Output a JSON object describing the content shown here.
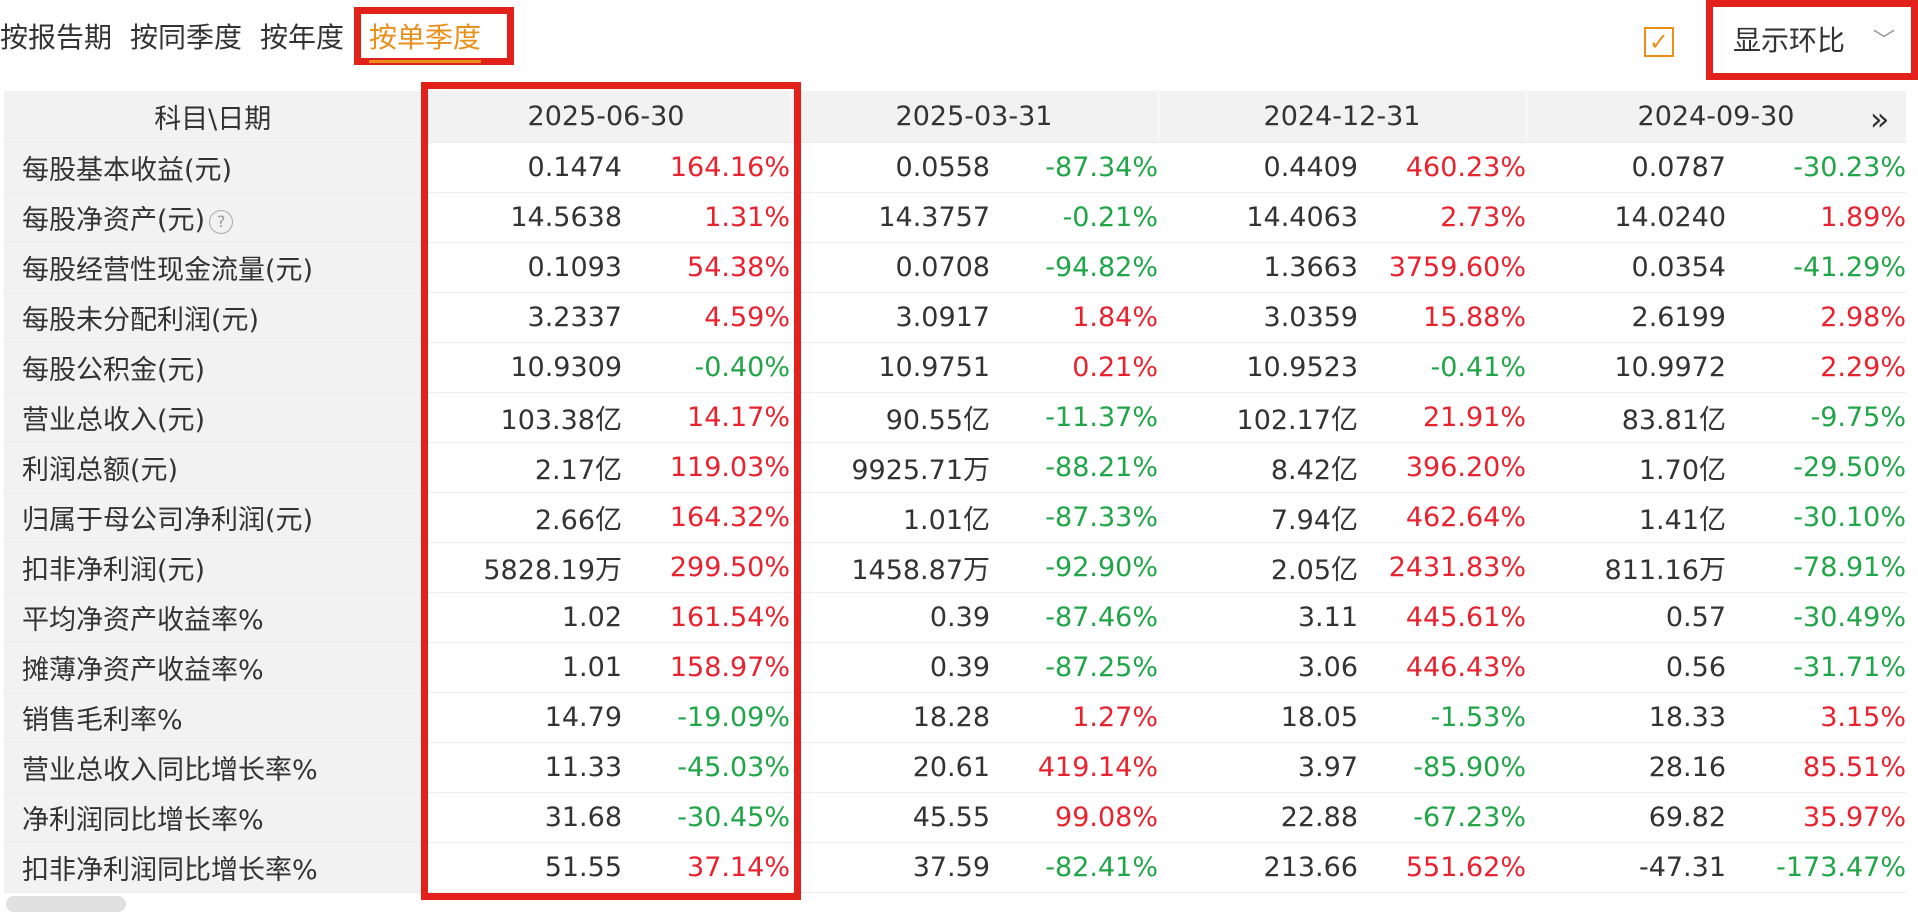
{
  "tabs": [
    {
      "label": "按报告期"
    },
    {
      "label": "按同季度"
    },
    {
      "label": "按年度"
    },
    {
      "label": "按单季度",
      "active": true
    }
  ],
  "toggle": {
    "checked": true,
    "select_label": "显示环比"
  },
  "table": {
    "subject_header": "科目\\日期",
    "columns": [
      "2025-06-30",
      "2025-03-31",
      "2024-12-31",
      "2024-09-30"
    ],
    "rows": [
      {
        "label": "每股基本收益(元)",
        "cells": [
          [
            "0.1474",
            "164.16%",
            "up"
          ],
          [
            "0.0558",
            "-87.34%",
            "down"
          ],
          [
            "0.4409",
            "460.23%",
            "up"
          ],
          [
            "0.0787",
            "-30.23%",
            "down"
          ]
        ]
      },
      {
        "label": "每股净资产(元)",
        "help": "?",
        "cells": [
          [
            "14.5638",
            "1.31%",
            "up"
          ],
          [
            "14.3757",
            "-0.21%",
            "down"
          ],
          [
            "14.4063",
            "2.73%",
            "up"
          ],
          [
            "14.0240",
            "1.89%",
            "up"
          ]
        ]
      },
      {
        "label": "每股经营性现金流量(元)",
        "cells": [
          [
            "0.1093",
            "54.38%",
            "up"
          ],
          [
            "0.0708",
            "-94.82%",
            "down"
          ],
          [
            "1.3663",
            "3759.60%",
            "up"
          ],
          [
            "0.0354",
            "-41.29%",
            "down"
          ]
        ]
      },
      {
        "label": "每股未分配利润(元)",
        "cells": [
          [
            "3.2337",
            "4.59%",
            "up"
          ],
          [
            "3.0917",
            "1.84%",
            "up"
          ],
          [
            "3.0359",
            "15.88%",
            "up"
          ],
          [
            "2.6199",
            "2.98%",
            "up"
          ]
        ]
      },
      {
        "label": "每股公积金(元)",
        "cells": [
          [
            "10.9309",
            "-0.40%",
            "down"
          ],
          [
            "10.9751",
            "0.21%",
            "up"
          ],
          [
            "10.9523",
            "-0.41%",
            "down"
          ],
          [
            "10.9972",
            "2.29%",
            "up"
          ]
        ]
      },
      {
        "label": "营业总收入(元)",
        "cells": [
          [
            "103.38亿",
            "14.17%",
            "up"
          ],
          [
            "90.55亿",
            "-11.37%",
            "down"
          ],
          [
            "102.17亿",
            "21.91%",
            "up"
          ],
          [
            "83.81亿",
            "-9.75%",
            "down"
          ]
        ]
      },
      {
        "label": "利润总额(元)",
        "cells": [
          [
            "2.17亿",
            "119.03%",
            "up"
          ],
          [
            "9925.71万",
            "-88.21%",
            "down"
          ],
          [
            "8.42亿",
            "396.20%",
            "up"
          ],
          [
            "1.70亿",
            "-29.50%",
            "down"
          ]
        ]
      },
      {
        "label": "归属于母公司净利润(元)",
        "cells": [
          [
            "2.66亿",
            "164.32%",
            "up"
          ],
          [
            "1.01亿",
            "-87.33%",
            "down"
          ],
          [
            "7.94亿",
            "462.64%",
            "up"
          ],
          [
            "1.41亿",
            "-30.10%",
            "down"
          ]
        ]
      },
      {
        "label": "扣非净利润(元)",
        "cells": [
          [
            "5828.19万",
            "299.50%",
            "up"
          ],
          [
            "1458.87万",
            "-92.90%",
            "down"
          ],
          [
            "2.05亿",
            "2431.83%",
            "up"
          ],
          [
            "811.16万",
            "-78.91%",
            "down"
          ]
        ]
      },
      {
        "label": "平均净资产收益率%",
        "cells": [
          [
            "1.02",
            "161.54%",
            "up"
          ],
          [
            "0.39",
            "-87.46%",
            "down"
          ],
          [
            "3.11",
            "445.61%",
            "up"
          ],
          [
            "0.57",
            "-30.49%",
            "down"
          ]
        ]
      },
      {
        "label": "摊薄净资产收益率%",
        "cells": [
          [
            "1.01",
            "158.97%",
            "up"
          ],
          [
            "0.39",
            "-87.25%",
            "down"
          ],
          [
            "3.06",
            "446.43%",
            "up"
          ],
          [
            "0.56",
            "-31.71%",
            "down"
          ]
        ]
      },
      {
        "label": "销售毛利率%",
        "cells": [
          [
            "14.79",
            "-19.09%",
            "down"
          ],
          [
            "18.28",
            "1.27%",
            "up"
          ],
          [
            "18.05",
            "-1.53%",
            "down"
          ],
          [
            "18.33",
            "3.15%",
            "up"
          ]
        ]
      },
      {
        "label": "营业总收入同比增长率%",
        "cells": [
          [
            "11.33",
            "-45.03%",
            "down"
          ],
          [
            "20.61",
            "419.14%",
            "up"
          ],
          [
            "3.97",
            "-85.90%",
            "down"
          ],
          [
            "28.16",
            "85.51%",
            "up"
          ]
        ]
      },
      {
        "label": "净利润同比增长率%",
        "cells": [
          [
            "31.68",
            "-30.45%",
            "down"
          ],
          [
            "45.55",
            "99.08%",
            "up"
          ],
          [
            "22.88",
            "-67.23%",
            "down"
          ],
          [
            "69.82",
            "35.97%",
            "up"
          ]
        ]
      },
      {
        "label": "扣非净利润同比增长率%",
        "cells": [
          [
            "51.55",
            "37.14%",
            "up"
          ],
          [
            "37.59",
            "-82.41%",
            "down"
          ],
          [
            "213.66",
            "551.62%",
            "up"
          ],
          [
            "-47.31",
            "-173.47%",
            "down"
          ]
        ]
      }
    ]
  },
  "colors": {
    "up": "#e8232f",
    "down": "#20a548",
    "accent": "#e8901a",
    "highlight": "#e3211b"
  }
}
